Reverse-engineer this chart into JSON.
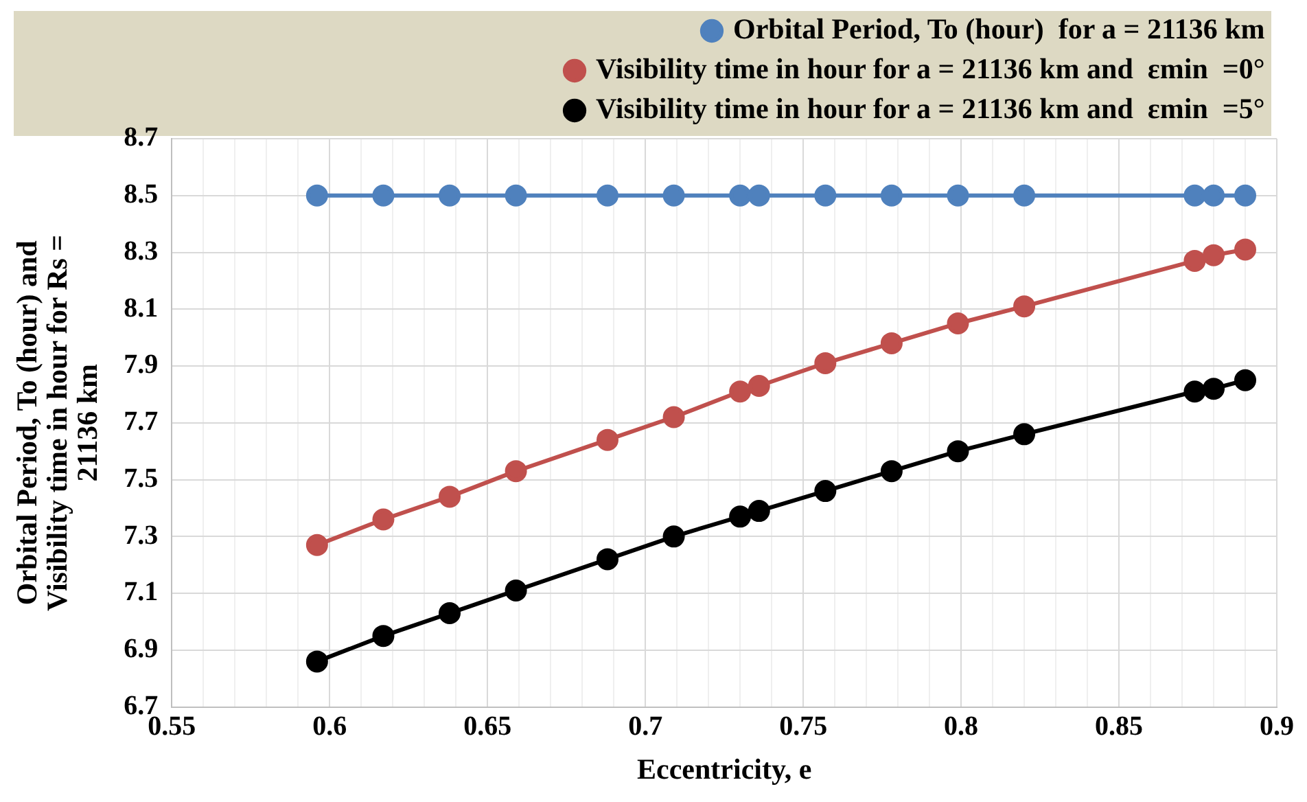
{
  "chart_data": {
    "type": "line",
    "xlabel": "Eccentricity, e",
    "ylabel": "Orbital Period, To (hour) and Visibility time in hour for Rs = 21136 km",
    "x": [
      0.596,
      0.617,
      0.638,
      0.659,
      0.688,
      0.709,
      0.73,
      0.736,
      0.757,
      0.778,
      0.799,
      0.82,
      0.874,
      0.88,
      0.89
    ],
    "series": [
      {
        "name": "Orbital Period, To (hour)  for a = 21136 km",
        "color": "#4f81bd",
        "values": [
          8.5,
          8.5,
          8.5,
          8.5,
          8.5,
          8.5,
          8.5,
          8.5,
          8.5,
          8.5,
          8.5,
          8.5,
          8.5,
          8.5,
          8.5
        ]
      },
      {
        "name": "Visibility time in hour for a = 21136 km and  εmin  =0°",
        "color": "#c0504d",
        "values": [
          7.27,
          7.36,
          7.44,
          7.53,
          7.64,
          7.72,
          7.81,
          7.83,
          7.91,
          7.98,
          8.05,
          8.11,
          8.27,
          8.29,
          8.31
        ]
      },
      {
        "name": "Visibility time in hour for a = 21136 km and  εmin  =5°",
        "color": "#000000",
        "values": [
          6.86,
          6.95,
          7.03,
          7.11,
          7.22,
          7.3,
          7.37,
          7.39,
          7.46,
          7.53,
          7.6,
          7.66,
          7.81,
          7.82,
          7.85
        ]
      }
    ],
    "xlim": [
      0.55,
      0.9
    ],
    "xticks": [
      0.55,
      {
        "value": 0.56,
        "label": null
      },
      {
        "value": 0.57,
        "label": null
      },
      {
        "value": 0.58,
        "label": null
      },
      {
        "value": 0.59,
        "label": null
      },
      0.6,
      {
        "value": 0.61,
        "label": null
      },
      {
        "value": 0.62,
        "label": null
      },
      {
        "value": 0.63,
        "label": null
      },
      {
        "value": 0.64,
        "label": null
      },
      0.65,
      {
        "value": 0.66,
        "label": null
      },
      {
        "value": 0.67,
        "label": null
      },
      {
        "value": 0.68,
        "label": null
      },
      {
        "value": 0.69,
        "label": null
      },
      0.7,
      {
        "value": 0.71,
        "label": null
      },
      {
        "value": 0.72,
        "label": null
      },
      {
        "value": 0.73,
        "label": null
      },
      {
        "value": 0.74,
        "label": null
      },
      0.75,
      {
        "value": 0.76,
        "label": null
      },
      {
        "value": 0.77,
        "label": null
      },
      {
        "value": 0.78,
        "label": null
      },
      {
        "value": 0.79,
        "label": null
      },
      0.8,
      {
        "value": 0.81,
        "label": null
      },
      {
        "value": 0.82,
        "label": null
      },
      {
        "value": 0.83,
        "label": null
      },
      {
        "value": 0.84,
        "label": null
      },
      0.85,
      {
        "value": 0.86,
        "label": null
      },
      {
        "value": 0.87,
        "label": null
      },
      {
        "value": 0.88,
        "label": null
      },
      {
        "value": 0.89,
        "label": null
      },
      0.9
    ],
    "ylim": [
      6.7,
      8.7
    ],
    "yticks": [
      6.7,
      6.9,
      7.1,
      7.3,
      7.5,
      7.7,
      7.9,
      8.1,
      8.3,
      8.5,
      8.7
    ],
    "grid": true,
    "legend": "top",
    "marker": "circle",
    "line_style": "solid"
  }
}
